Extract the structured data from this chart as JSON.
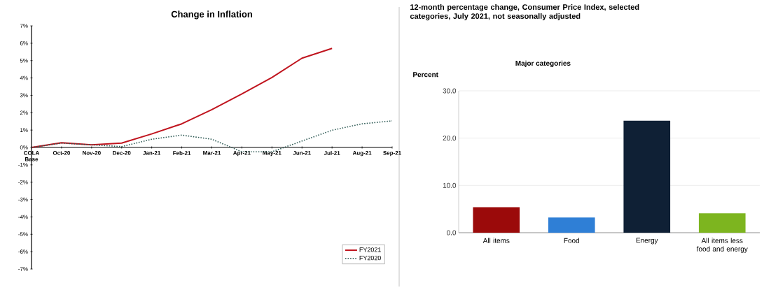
{
  "chart_data": [
    {
      "type": "line",
      "title": "Change in Inflation",
      "categories": [
        "COLA Base",
        "Oct-20",
        "Nov-20",
        "Dec-20",
        "Jan-21",
        "Feb-21",
        "Mar-21",
        "Apr-21",
        "May-21",
        "Jun-21",
        "Jul-21",
        "Aug-21",
        "Sep-21"
      ],
      "series": [
        {
          "name": "FY2021",
          "color": "#c0141e",
          "line_style": "solid",
          "values": [
            0,
            0.27,
            0.15,
            0.25,
            0.78,
            1.36,
            2.18,
            3.08,
            4.03,
            5.14,
            5.7,
            null,
            null
          ]
        },
        {
          "name": "FY2020",
          "color": "#2e5a55",
          "line_style": "dotted",
          "values": [
            0,
            0.25,
            0.15,
            0.05,
            0.47,
            0.71,
            0.47,
            -0.25,
            -0.25,
            0.37,
            0.99,
            1.36,
            1.53
          ]
        }
      ],
      "ylim": [
        -7,
        7
      ],
      "yticks": [
        {
          "value": -7,
          "label": "-7%"
        },
        {
          "value": -6,
          "label": "-6%"
        },
        {
          "value": -5,
          "label": "-5%"
        },
        {
          "value": -4,
          "label": "-4%"
        },
        {
          "value": -3,
          "label": "-3%"
        },
        {
          "value": -2,
          "label": "-2%"
        },
        {
          "value": -1,
          "label": "-1%"
        },
        {
          "value": 0,
          "label": "0%"
        },
        {
          "value": 1,
          "label": "1%"
        },
        {
          "value": 2,
          "label": "2%"
        },
        {
          "value": 3,
          "label": "3%"
        },
        {
          "value": 4,
          "label": "4%"
        },
        {
          "value": 5,
          "label": "5%"
        },
        {
          "value": 6,
          "label": "6%"
        },
        {
          "value": 7,
          "label": "7%"
        }
      ],
      "legend": "bottom right",
      "marker": "none",
      "grid": false
    },
    {
      "type": "bar",
      "title": "12-month percentage change, Consumer Price Index, selected categories, July 2021, not seasonally adjusted",
      "subtitle": "Major categories",
      "ylabel": "Percent",
      "categories": [
        "All items",
        "Food",
        "Energy",
        "All items less food and energy"
      ],
      "values": [
        5.4,
        3.2,
        23.7,
        4.1
      ],
      "colors": [
        "#9b0a0a",
        "#2f7fd6",
        "#0f2035",
        "#7db51f"
      ],
      "ylim": [
        0,
        30
      ],
      "yticks": [
        {
          "value": 0,
          "label": "0.0"
        },
        {
          "value": 10,
          "label": "10.0"
        },
        {
          "value": 20,
          "label": "20.0"
        },
        {
          "value": 30,
          "label": "30.0"
        }
      ],
      "grid": "y"
    }
  ]
}
